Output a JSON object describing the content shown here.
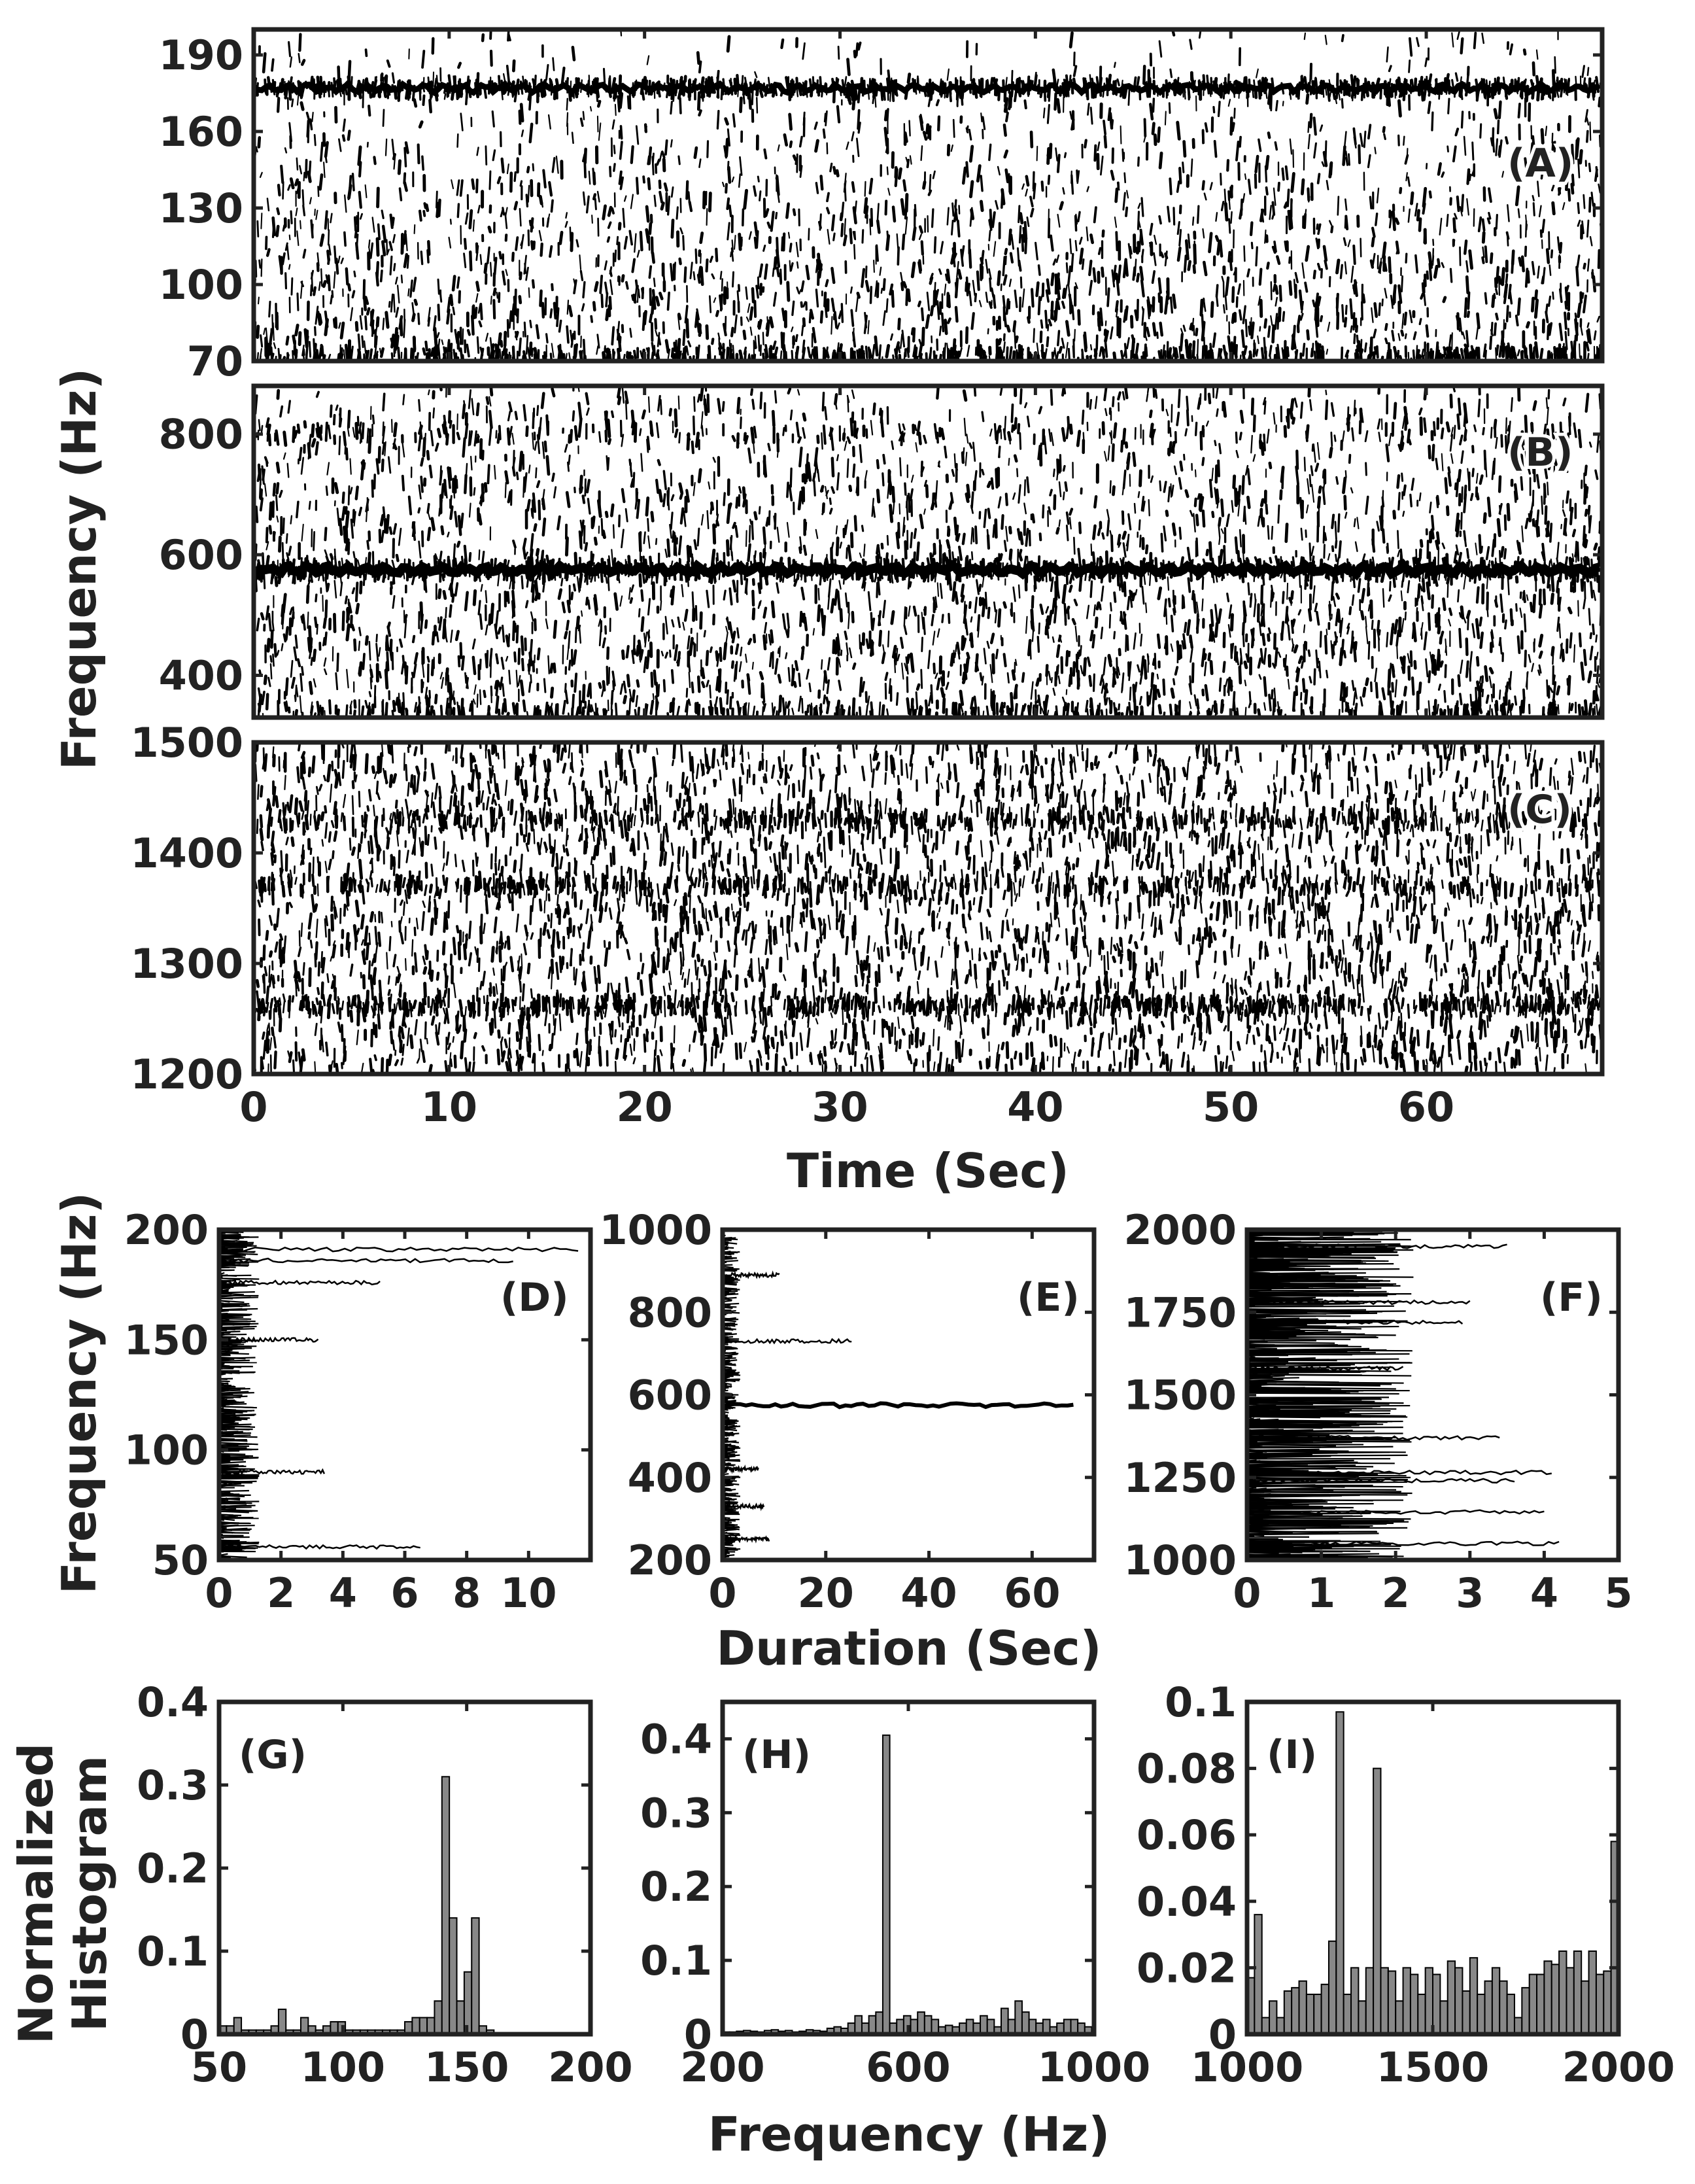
{
  "chart_data": [
    {
      "id": "A",
      "panel_label": "(A)",
      "type": "heatmap",
      "description": "Spectrogram (band A)",
      "ylim": [
        70,
        200
      ],
      "xlim": [
        0,
        69
      ],
      "yticks": [
        70,
        100,
        130,
        160,
        190
      ],
      "xticks": [
        0,
        10,
        20,
        30,
        40,
        50,
        60
      ],
      "bands": [
        {
          "freq": 177,
          "strength": 0.95
        },
        {
          "freq": 72,
          "strength": 0.6
        }
      ]
    },
    {
      "id": "B",
      "panel_label": "(B)",
      "type": "heatmap",
      "description": "Spectrogram (band B)",
      "ylim": [
        330,
        880
      ],
      "xlim": [
        0,
        69
      ],
      "yticks": [
        400,
        600,
        800
      ],
      "xticks": [
        0,
        10,
        20,
        30,
        40,
        50,
        60
      ],
      "bands": [
        {
          "freq": 575,
          "strength": 1.0
        },
        {
          "freq": 800,
          "strength": 0.25
        },
        {
          "freq": 340,
          "strength": 0.5
        }
      ]
    },
    {
      "id": "C",
      "panel_label": "(C)",
      "type": "heatmap",
      "description": "Spectrogram (band C)",
      "ylim": [
        1200,
        1500
      ],
      "xlim": [
        0,
        69
      ],
      "yticks": [
        1200,
        1300,
        1400,
        1500
      ],
      "xticks": [
        0,
        10,
        20,
        30,
        40,
        50,
        60
      ],
      "xticklabels": [
        "0",
        "10",
        "20",
        "30",
        "40",
        "50",
        "60"
      ],
      "bands": [
        {
          "freq": 1262,
          "strength": 0.7
        },
        {
          "freq": 1430,
          "strength": 0.5
        },
        {
          "freq": 1370,
          "strength": 0.45
        }
      ]
    },
    {
      "id": "D",
      "panel_label": "(D)",
      "type": "line",
      "xlim": [
        0,
        12
      ],
      "ylim": [
        50,
        200
      ],
      "xticks": [
        0,
        2,
        4,
        6,
        8,
        10
      ],
      "yticks": [
        50,
        100,
        150,
        200
      ],
      "tracks": [
        {
          "freq": 191,
          "duration": 11.6
        },
        {
          "freq": 186,
          "duration": 9.5
        },
        {
          "freq": 176,
          "duration": 5.2
        },
        {
          "freq": 150,
          "duration": 3.2
        },
        {
          "freq": 90,
          "duration": 3.4
        },
        {
          "freq": 56,
          "duration": 6.5
        }
      ]
    },
    {
      "id": "E",
      "panel_label": "(E)",
      "type": "line",
      "xlim": [
        0,
        72
      ],
      "ylim": [
        200,
        1000
      ],
      "xticks": [
        0,
        20,
        40,
        60
      ],
      "yticks": [
        200,
        400,
        600,
        800,
        1000
      ],
      "tracks": [
        {
          "freq": 575,
          "duration": 68
        },
        {
          "freq": 730,
          "duration": 25
        },
        {
          "freq": 890,
          "duration": 11
        },
        {
          "freq": 420,
          "duration": 7
        },
        {
          "freq": 330,
          "duration": 8
        },
        {
          "freq": 250,
          "duration": 9
        }
      ]
    },
    {
      "id": "F",
      "panel_label": "(F)",
      "type": "line",
      "xlim": [
        0,
        5
      ],
      "ylim": [
        1000,
        2000
      ],
      "xticks": [
        0,
        1,
        2,
        3,
        4,
        5
      ],
      "yticks": [
        1000,
        1250,
        1500,
        1750,
        2000
      ],
      "tracks": [
        {
          "freq": 1950,
          "duration": 3.5
        },
        {
          "freq": 1780,
          "duration": 3.0
        },
        {
          "freq": 1720,
          "duration": 2.9
        },
        {
          "freq": 1370,
          "duration": 3.4
        },
        {
          "freq": 1265,
          "duration": 4.1
        },
        {
          "freq": 1240,
          "duration": 3.6
        },
        {
          "freq": 1145,
          "duration": 4.0
        },
        {
          "freq": 1050,
          "duration": 4.2
        },
        {
          "freq": 1580,
          "duration": 2.1
        }
      ]
    },
    {
      "id": "G",
      "panel_label": "(G)",
      "type": "bar",
      "xlim": [
        50,
        200
      ],
      "ylim": [
        0,
        0.4
      ],
      "xticks": [
        50,
        100,
        150,
        200
      ],
      "yticks": [
        0,
        0.1,
        0.2,
        0.3,
        0.4
      ],
      "yticklabels": [
        "0",
        "0.1",
        "0.2",
        "0.3",
        "0.4"
      ],
      "bin_start": 50,
      "bin_width": 3,
      "values": [
        0.01,
        0.01,
        0.02,
        0.005,
        0.005,
        0.005,
        0.005,
        0.01,
        0.03,
        0.005,
        0.005,
        0.02,
        0.01,
        0.005,
        0.01,
        0.015,
        0.015,
        0.005,
        0.005,
        0.005,
        0.005,
        0.005,
        0.005,
        0.005,
        0.005,
        0.015,
        0.02,
        0.02,
        0.02,
        0.04,
        0.31,
        0.14,
        0.04,
        0.075,
        0.14,
        0.01,
        0.005
      ]
    },
    {
      "id": "H",
      "panel_label": "(H)",
      "type": "bar",
      "xlim": [
        200,
        1000
      ],
      "ylim": [
        0,
        0.45
      ],
      "xticks": [
        200,
        600,
        1000
      ],
      "yticks": [
        0,
        0.1,
        0.2,
        0.3,
        0.4
      ],
      "yticklabels": [
        "0",
        "0.1",
        "0.2",
        "0.3",
        "0.4"
      ],
      "bin_start": 200,
      "bin_width": 15,
      "values": [
        0.003,
        0.003,
        0.004,
        0.005,
        0.004,
        0.003,
        0.005,
        0.006,
        0.004,
        0.005,
        0.003,
        0.004,
        0.006,
        0.005,
        0.004,
        0.008,
        0.01,
        0.008,
        0.015,
        0.025,
        0.015,
        0.025,
        0.03,
        0.405,
        0.015,
        0.02,
        0.025,
        0.02,
        0.03,
        0.025,
        0.02,
        0.01,
        0.012,
        0.01,
        0.015,
        0.02,
        0.015,
        0.025,
        0.02,
        0.01,
        0.035,
        0.02,
        0.045,
        0.03,
        0.02,
        0.015,
        0.02,
        0.01,
        0.015,
        0.02,
        0.02,
        0.015,
        0.01
      ]
    },
    {
      "id": "I",
      "panel_label": "(I)",
      "type": "bar",
      "xlim": [
        1000,
        2000
      ],
      "ylim": [
        0,
        0.1
      ],
      "xticks": [
        1000,
        1500,
        2000
      ],
      "yticks": [
        0,
        0.02,
        0.04,
        0.06,
        0.08,
        0.1
      ],
      "yticklabels": [
        "0",
        "0.02",
        "0.04",
        "0.06",
        "0.08",
        "0.1"
      ],
      "bin_start": 1000,
      "bin_width": 20,
      "values": [
        0.017,
        0.036,
        0.005,
        0.01,
        0.005,
        0.013,
        0.014,
        0.016,
        0.012,
        0.012,
        0.015,
        0.028,
        0.097,
        0.012,
        0.02,
        0.01,
        0.02,
        0.08,
        0.02,
        0.019,
        0.01,
        0.02,
        0.018,
        0.012,
        0.02,
        0.018,
        0.01,
        0.022,
        0.02,
        0.013,
        0.023,
        0.012,
        0.016,
        0.02,
        0.016,
        0.012,
        0.005,
        0.014,
        0.018,
        0.018,
        0.022,
        0.021,
        0.025,
        0.02,
        0.025,
        0.016,
        0.025,
        0.018,
        0.019,
        0.058,
        0.018,
        0.024,
        0.026,
        0.032
      ]
    }
  ],
  "labels": {
    "y_top": "Frequency (Hz)",
    "x_top": "Time (Sec)",
    "y_mid": "Frequency (Hz)",
    "x_mid": "Duration (Sec)",
    "y_bot_line1": "Normalized",
    "y_bot_line2": "Histogram",
    "x_bot": "Frequency (Hz)"
  },
  "colors": {
    "ink": "#000000",
    "axis": "#222222",
    "bar_fill": "#888888",
    "background": "#ffffff"
  }
}
